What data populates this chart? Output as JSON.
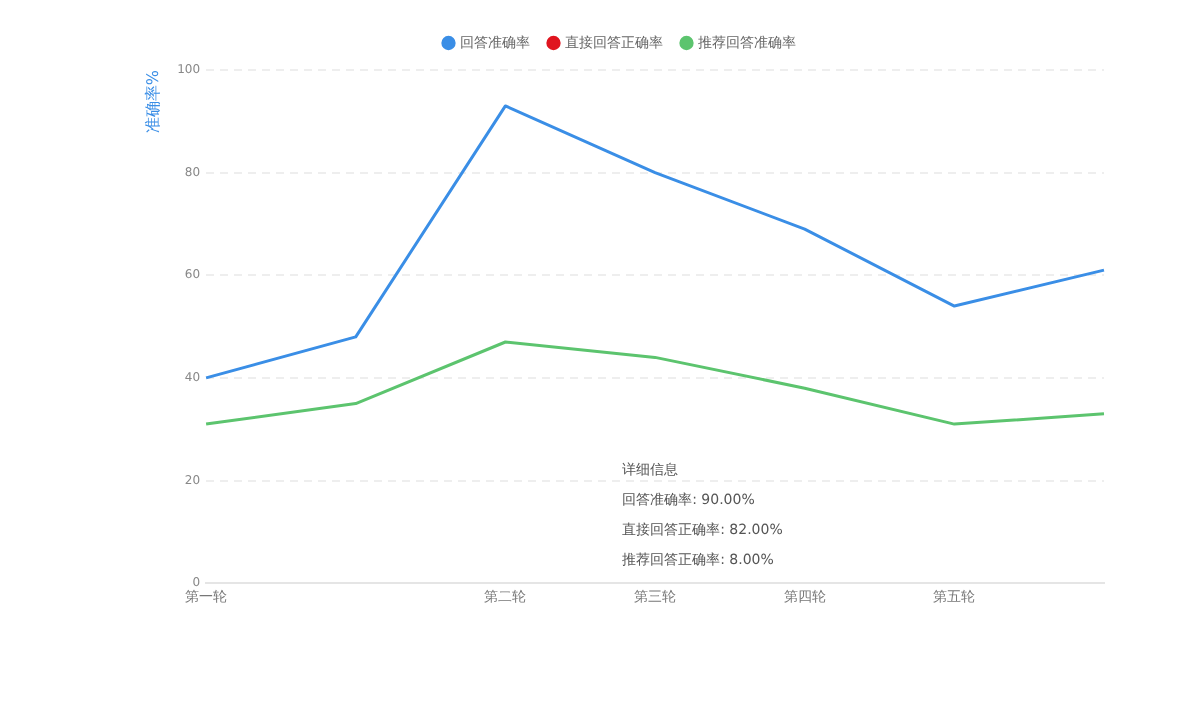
{
  "chart_data": {
    "type": "line",
    "ylabel": "准确率%",
    "categories": [
      "第一轮",
      null,
      "第二轮",
      "第三轮",
      "第四轮",
      "第五轮",
      null
    ],
    "ylim": [
      0,
      100
    ],
    "yticks": [
      0,
      20,
      40,
      60,
      80,
      100
    ],
    "grid": "y",
    "legend": "top",
    "marker": "none",
    "line_style": "solid",
    "series": [
      {
        "name": "回答准确率",
        "color": "#3a8ee6",
        "values": [
          40,
          48,
          93,
          80,
          69,
          54,
          61
        ]
      },
      {
        "name": "直接回答正确率",
        "color": "#e0151f",
        "values": [
          null,
          null,
          null,
          null,
          null,
          null,
          null
        ]
      },
      {
        "name": "推荐回答准确率",
        "color": "#5cc46e",
        "values": [
          31,
          35,
          47,
          44,
          38,
          31,
          33
        ]
      }
    ],
    "annotations": [
      "详细信息",
      "回答准确率: 90.00%",
      "直接回答正确率: 82.00%",
      "推荐回答正确率: 8.00%"
    ]
  }
}
